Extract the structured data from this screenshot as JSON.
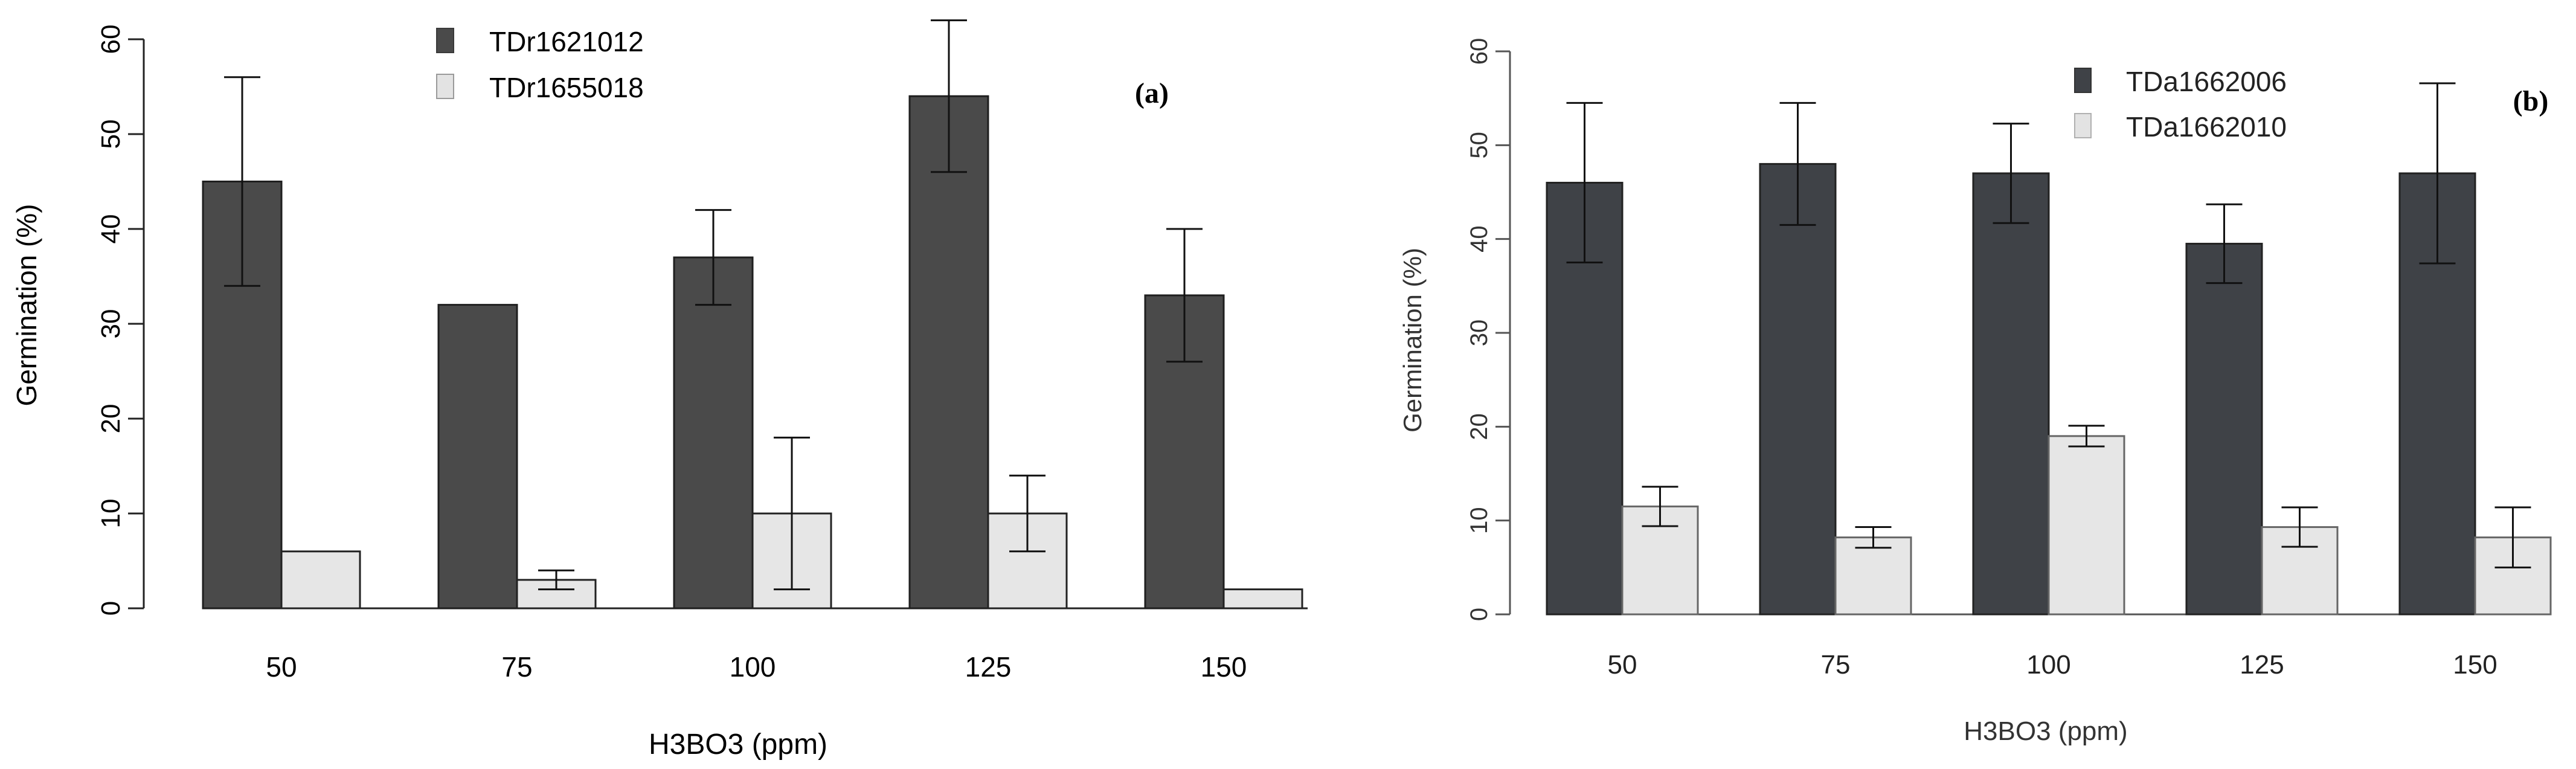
{
  "chart_data": [
    {
      "type": "bar",
      "panel_label": "(a)",
      "title": "",
      "xlabel": "H3BO3 (ppm)",
      "ylabel": "Germination (%)",
      "ylim": [
        0,
        60
      ],
      "yticks": [
        0,
        10,
        20,
        30,
        40,
        50,
        60
      ],
      "categories": [
        "50",
        "75",
        "100",
        "125",
        "150"
      ],
      "grid": false,
      "legend_position": "top-center",
      "series": [
        {
          "name": "TDr1621012",
          "color": "#4a4a4a",
          "values": [
            45,
            32,
            37,
            54,
            33
          ],
          "errors": [
            11,
            null,
            5,
            8,
            7
          ]
        },
        {
          "name": "TDr1655018",
          "color": "#e6e6e6",
          "values": [
            6,
            3,
            10,
            10,
            2
          ],
          "errors": [
            null,
            1,
            8,
            4,
            null
          ]
        }
      ]
    },
    {
      "type": "bar",
      "panel_label": "(b)",
      "title": "",
      "xlabel": "H3BO3 (ppm)",
      "ylabel": "Germination (%)",
      "ylim": [
        0,
        60
      ],
      "yticks": [
        0,
        10,
        20,
        30,
        40,
        50,
        60
      ],
      "categories": [
        "50",
        "75",
        "100",
        "125",
        "150"
      ],
      "grid": false,
      "legend_position": "top-center",
      "series": [
        {
          "name": "TDa1662006",
          "color": "#3f4247",
          "values": [
            46,
            48,
            47,
            39.5,
            47
          ],
          "errors": [
            8.5,
            6.5,
            5.3,
            4.2,
            9.6
          ]
        },
        {
          "name": "TDa1662010",
          "color": "#e6e6e6",
          "values": [
            11.5,
            8.2,
            19,
            9.3,
            8.2
          ],
          "errors": [
            2.1,
            1.1,
            1.1,
            2.1,
            3.2
          ]
        }
      ]
    }
  ]
}
